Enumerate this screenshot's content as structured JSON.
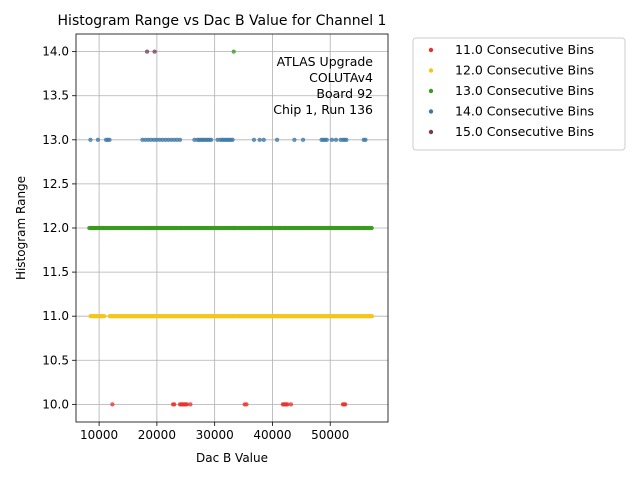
{
  "chart_data": {
    "type": "scatter",
    "title": "Histogram Range vs Dac B Value for Channel 1",
    "xlabel": "Dac B Value",
    "ylabel": "Histogram Range",
    "xlim": [
      6000,
      60000
    ],
    "ylim": [
      9.8,
      14.2
    ],
    "xticks": [
      10000,
      20000,
      30000,
      40000,
      50000
    ],
    "xtick_labels": [
      "10000",
      "20000",
      "30000",
      "40000",
      "50000"
    ],
    "yticks": [
      10.0,
      10.5,
      11.0,
      11.5,
      12.0,
      12.5,
      13.0,
      13.5,
      14.0
    ],
    "ytick_labels": [
      "10.0",
      "10.5",
      "11.0",
      "11.5",
      "12.0",
      "12.5",
      "13.0",
      "13.5",
      "14.0"
    ],
    "grid": true,
    "legend_position": "outside-upper-right",
    "annotation": [
      "ATLAS Upgrade",
      "COLUTAv4",
      "Board 92",
      "Chip 1, Run 136"
    ],
    "series": [
      {
        "name": "11.0 Consecutive Bins",
        "color": "#e8322d",
        "y": 10.0,
        "x": [
          12300,
          22800,
          23000,
          24000,
          24200,
          24400,
          24600,
          24800,
          25000,
          25200,
          25800,
          35200,
          35500,
          41800,
          42000,
          42200,
          42400,
          42600,
          43200,
          52200,
          52400,
          52600
        ]
      },
      {
        "name": "12.0 Consecutive Bins",
        "color": "#f5c518",
        "y": 11.0,
        "ranges": [
          [
            8500,
            11000
          ],
          [
            11800,
            57300
          ]
        ],
        "extra_x": [
          34200
        ]
      },
      {
        "name": "13.0 Consecutive Bins",
        "color": "#3a9a1e",
        "y": 12.0,
        "ranges": [
          [
            8300,
            57300
          ]
        ],
        "extra_x": [
          33300
        ]
      },
      {
        "name": "14.0 Consecutive Bins",
        "color": "#3c78a8",
        "y": 13.0,
        "x": [
          8500,
          9800,
          11200,
          11500,
          11800,
          17500,
          18000,
          18500,
          19000,
          19500,
          20000,
          20500,
          21000,
          21500,
          22000,
          22500,
          23000,
          23500,
          24000,
          26500,
          27000,
          27300,
          27600,
          27900,
          28200,
          28500,
          28800,
          29100,
          29400,
          30500,
          31000,
          31300,
          31600,
          31900,
          32200,
          32500,
          32800,
          33100,
          36800,
          37800,
          38500,
          40800,
          43800,
          45300,
          48500,
          48800,
          49100,
          49400,
          50300,
          51000,
          51800,
          52200,
          52500,
          52800,
          55800,
          56100
        ]
      },
      {
        "name": "15.0 Consecutive Bins",
        "color": "#7b3c4e",
        "y": 14.0,
        "x": [
          18300,
          19600
        ]
      }
    ],
    "series_14_extra": {
      "y": 14.0,
      "x": [
        33300
      ],
      "color": "#3a9a1e"
    }
  }
}
